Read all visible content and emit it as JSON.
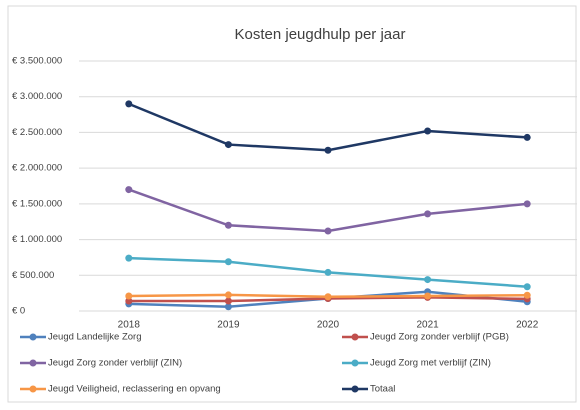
{
  "chart_data": {
    "type": "line",
    "title": "Kosten jeugdhulp per jaar",
    "categories": [
      "2018",
      "2019",
      "2020",
      "2021",
      "2022"
    ],
    "series": [
      {
        "name": "Jeugd Landelijke Zorg",
        "color": "#4f81bd",
        "values": [
          100000,
          60000,
          175000,
          270000,
          130000
        ]
      },
      {
        "name": "Jeugd Zorg zonder verblijf (PGB)",
        "color": "#c0504d",
        "values": [
          140000,
          140000,
          175000,
          190000,
          170000
        ]
      },
      {
        "name": "Jeugd Zorg zonder verblijf (ZIN)",
        "color": "#8064a2",
        "values": [
          1700000,
          1200000,
          1120000,
          1360000,
          1500000
        ]
      },
      {
        "name": "Jeugd Zorg met verblijf (ZIN)",
        "color": "#4bacc6",
        "values": [
          740000,
          690000,
          540000,
          440000,
          340000
        ]
      },
      {
        "name": "Jeugd Veiligheid, reclassering en opvang",
        "color": "#f79646",
        "values": [
          210000,
          225000,
          200000,
          210000,
          220000
        ]
      },
      {
        "name": "Totaal",
        "color": "#1f3864",
        "values": [
          2900000,
          2330000,
          2250000,
          2520000,
          2430000
        ]
      }
    ],
    "ylim": [
      0,
      3500000
    ],
    "yticks": [
      {
        "value": 0,
        "label": "€ 0"
      },
      {
        "value": 500000,
        "label": "€ 500.000"
      },
      {
        "value": 1000000,
        "label": "€ 1.000.000"
      },
      {
        "value": 1500000,
        "label": "€ 1.500.000"
      },
      {
        "value": 2000000,
        "label": "€ 2.000.000"
      },
      {
        "value": 2500000,
        "label": "€ 2.500.000"
      },
      {
        "value": 3000000,
        "label": "€ 3.000.000"
      },
      {
        "value": 3500000,
        "label": "€ 3.500.000"
      }
    ],
    "grid": true
  }
}
